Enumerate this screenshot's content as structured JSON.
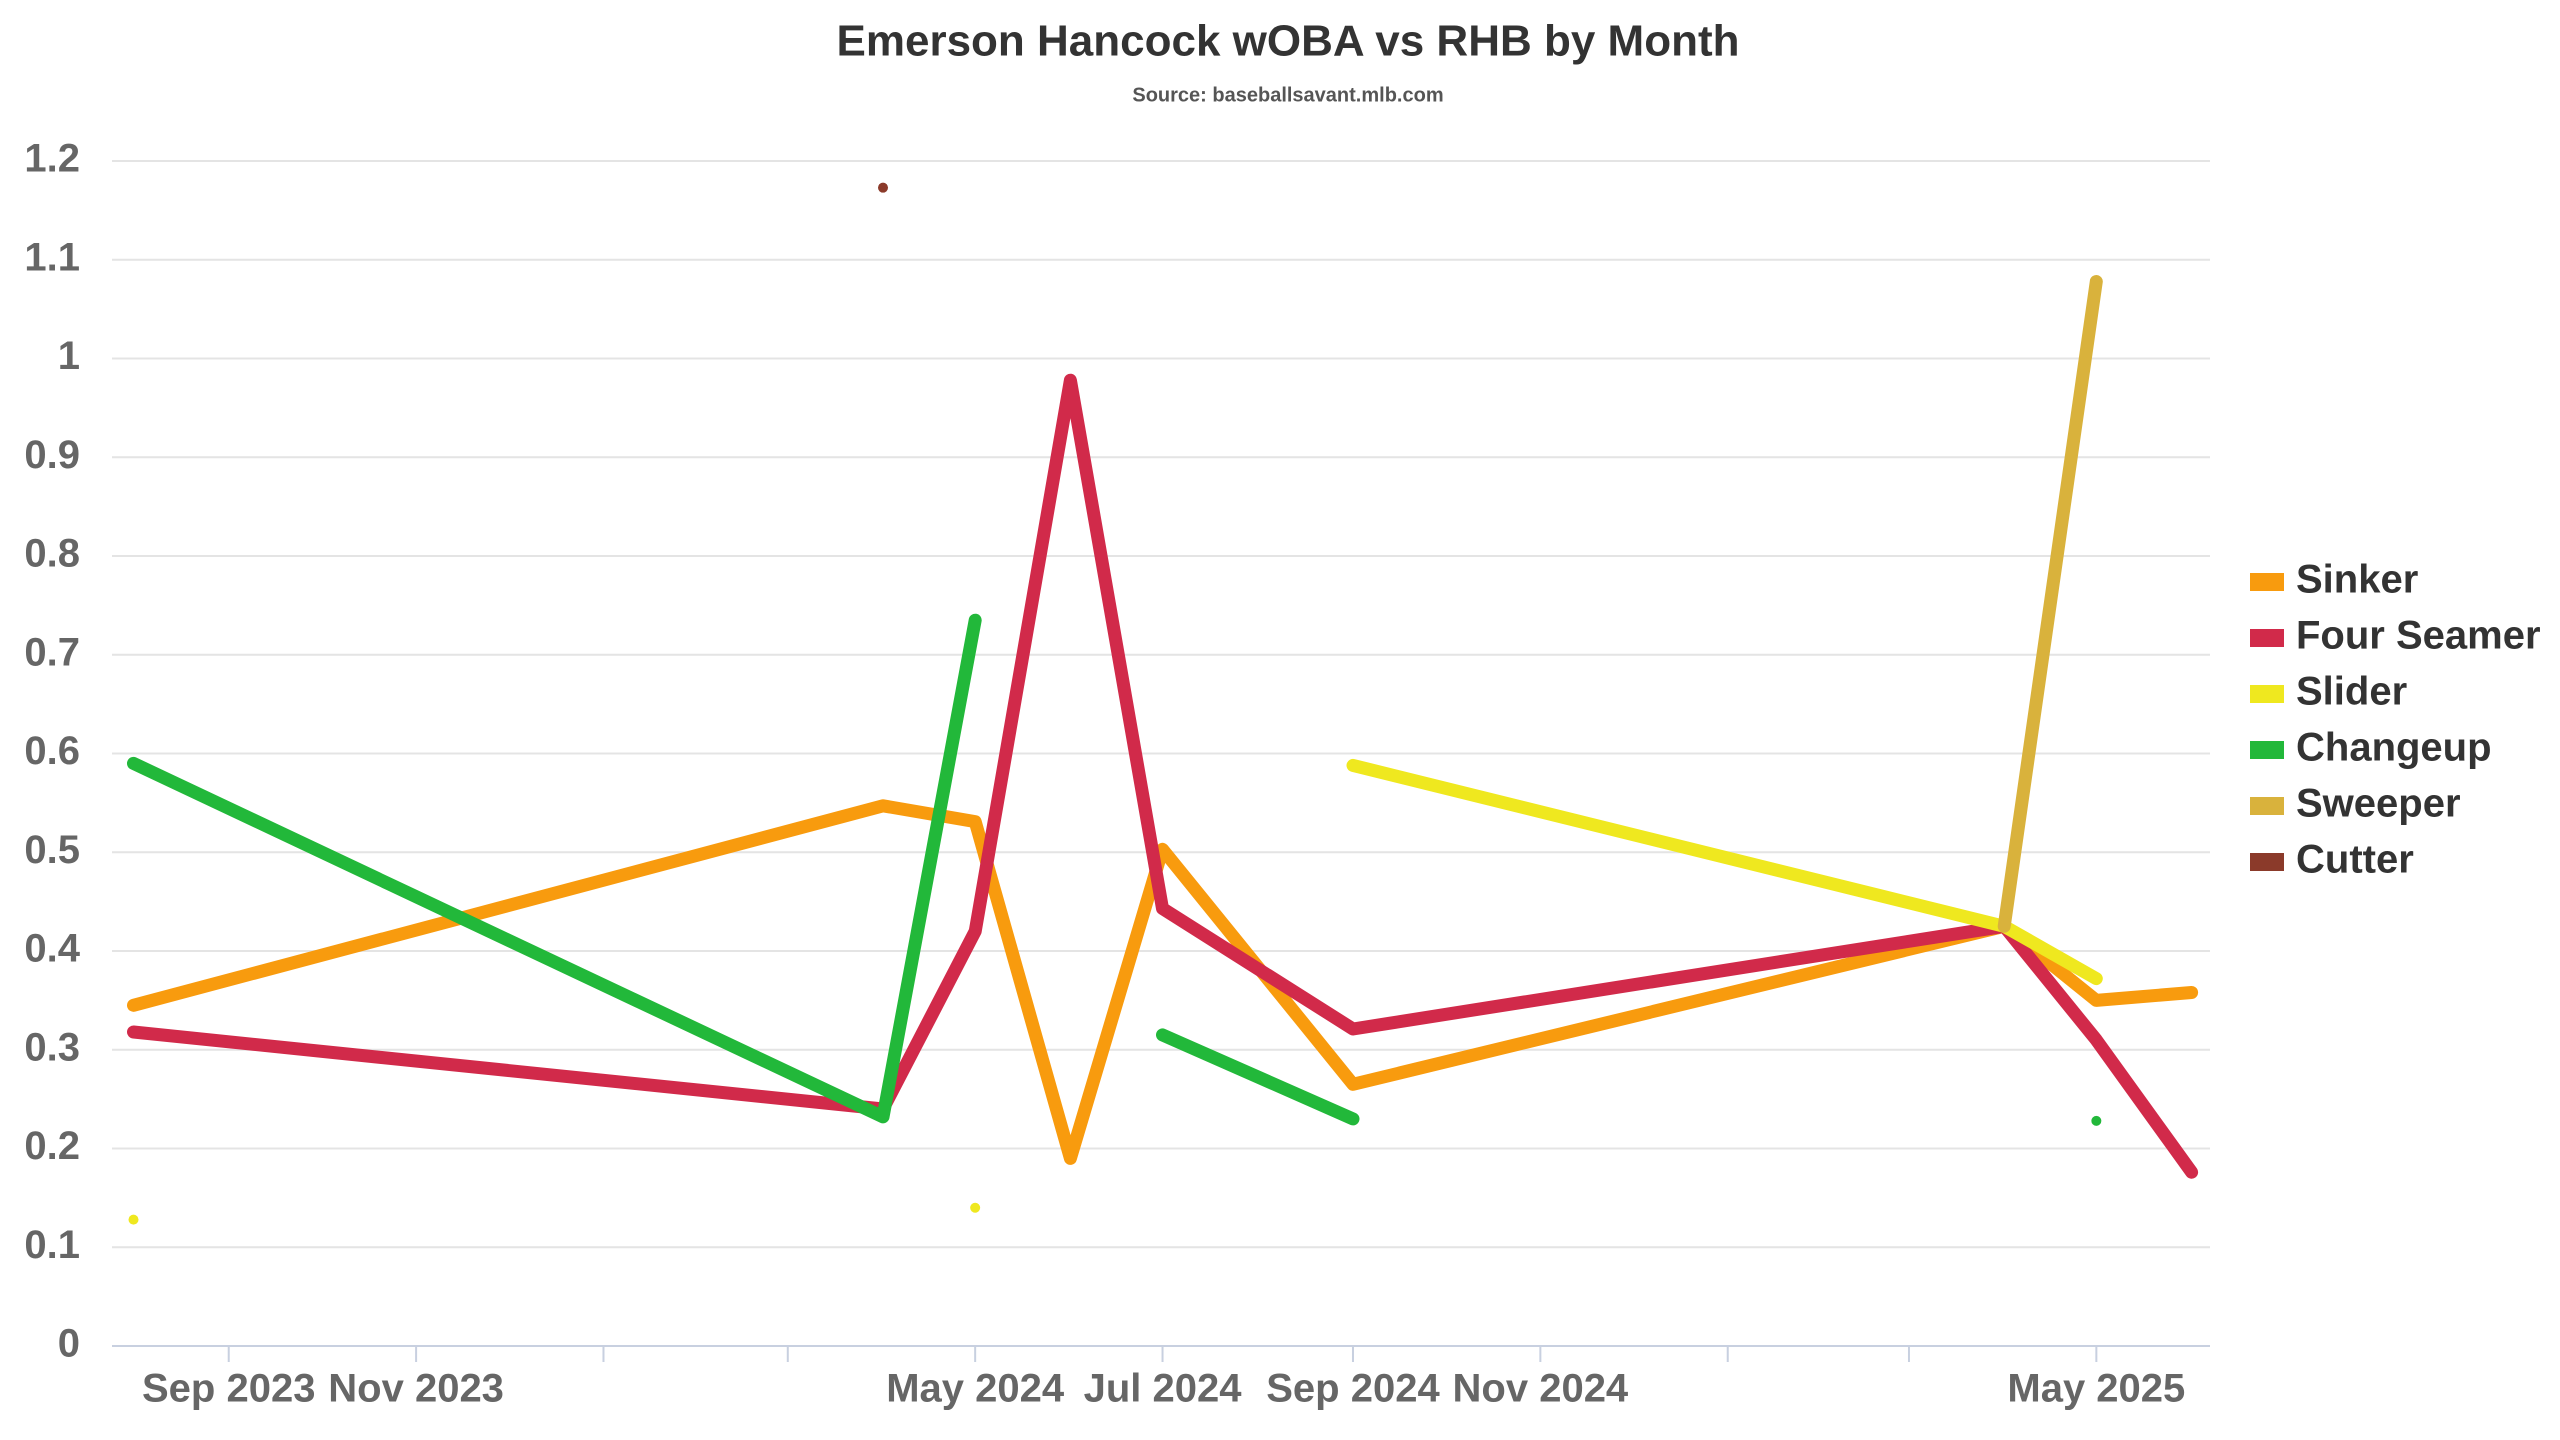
{
  "chart_data": {
    "type": "line",
    "title": "Emerson Hancock wOBA vs RHB by Month",
    "subtitle": "Source: baseballsavant.mlb.com",
    "x": [
      "2023-08",
      "2024-04",
      "2024-05",
      "2024-06",
      "2024-07",
      "2024-09",
      "2025-04",
      "2025-05",
      "2025-06"
    ],
    "series": [
      {
        "name": "Sinker",
        "color": "#f89b0e",
        "values": [
          0.345,
          0.547,
          0.531,
          0.19,
          0.503,
          0.265,
          0.425,
          0.35,
          0.358
        ]
      },
      {
        "name": "Four Seamer",
        "color": "#d12a4a",
        "values": [
          0.318,
          0.24,
          0.42,
          0.978,
          0.443,
          0.321,
          0.425,
          0.31,
          0.176
        ]
      },
      {
        "name": "Slider",
        "color": "#efe81f",
        "values": [
          0.128,
          null,
          0.14,
          null,
          null,
          0.588,
          0.425,
          0.372,
          null
        ]
      },
      {
        "name": "Changeup",
        "color": "#22b83a",
        "values": [
          0.59,
          0.232,
          0.735,
          null,
          0.315,
          0.23,
          null,
          0.228,
          null
        ]
      },
      {
        "name": "Sweeper",
        "color": "#d9b23c",
        "values": [
          null,
          null,
          null,
          null,
          null,
          null,
          0.425,
          1.078,
          null
        ]
      },
      {
        "name": "Cutter",
        "color": "#8b3a2a",
        "values": [
          null,
          1.173,
          null,
          null,
          null,
          null,
          null,
          null,
          null
        ]
      }
    ],
    "xlim": [
      "2023-07-25",
      "2025-06-07"
    ],
    "xticks": [
      {
        "value": "2023-09",
        "label": "Sep 2023"
      },
      {
        "value": "2023-11",
        "label": "Nov 2023"
      },
      {
        "value": "2024-01",
        "label": null
      },
      {
        "value": "2024-03",
        "label": null
      },
      {
        "value": "2024-05",
        "label": "May 2024"
      },
      {
        "value": "2024-07",
        "label": "Jul 2024"
      },
      {
        "value": "2024-09",
        "label": "Sep 2024"
      },
      {
        "value": "2024-11",
        "label": "Nov 2024"
      },
      {
        "value": "2025-01",
        "label": null
      },
      {
        "value": "2025-03",
        "label": null
      },
      {
        "value": "2025-05",
        "label": "May 2025"
      }
    ],
    "ylim": [
      0,
      1.2
    ],
    "yticks": [
      0,
      0.1,
      0.2,
      0.3,
      0.4,
      0.5,
      0.6,
      0.7,
      0.8,
      0.9,
      1,
      1.1,
      1.2
    ],
    "grid": true,
    "legend": "right"
  }
}
